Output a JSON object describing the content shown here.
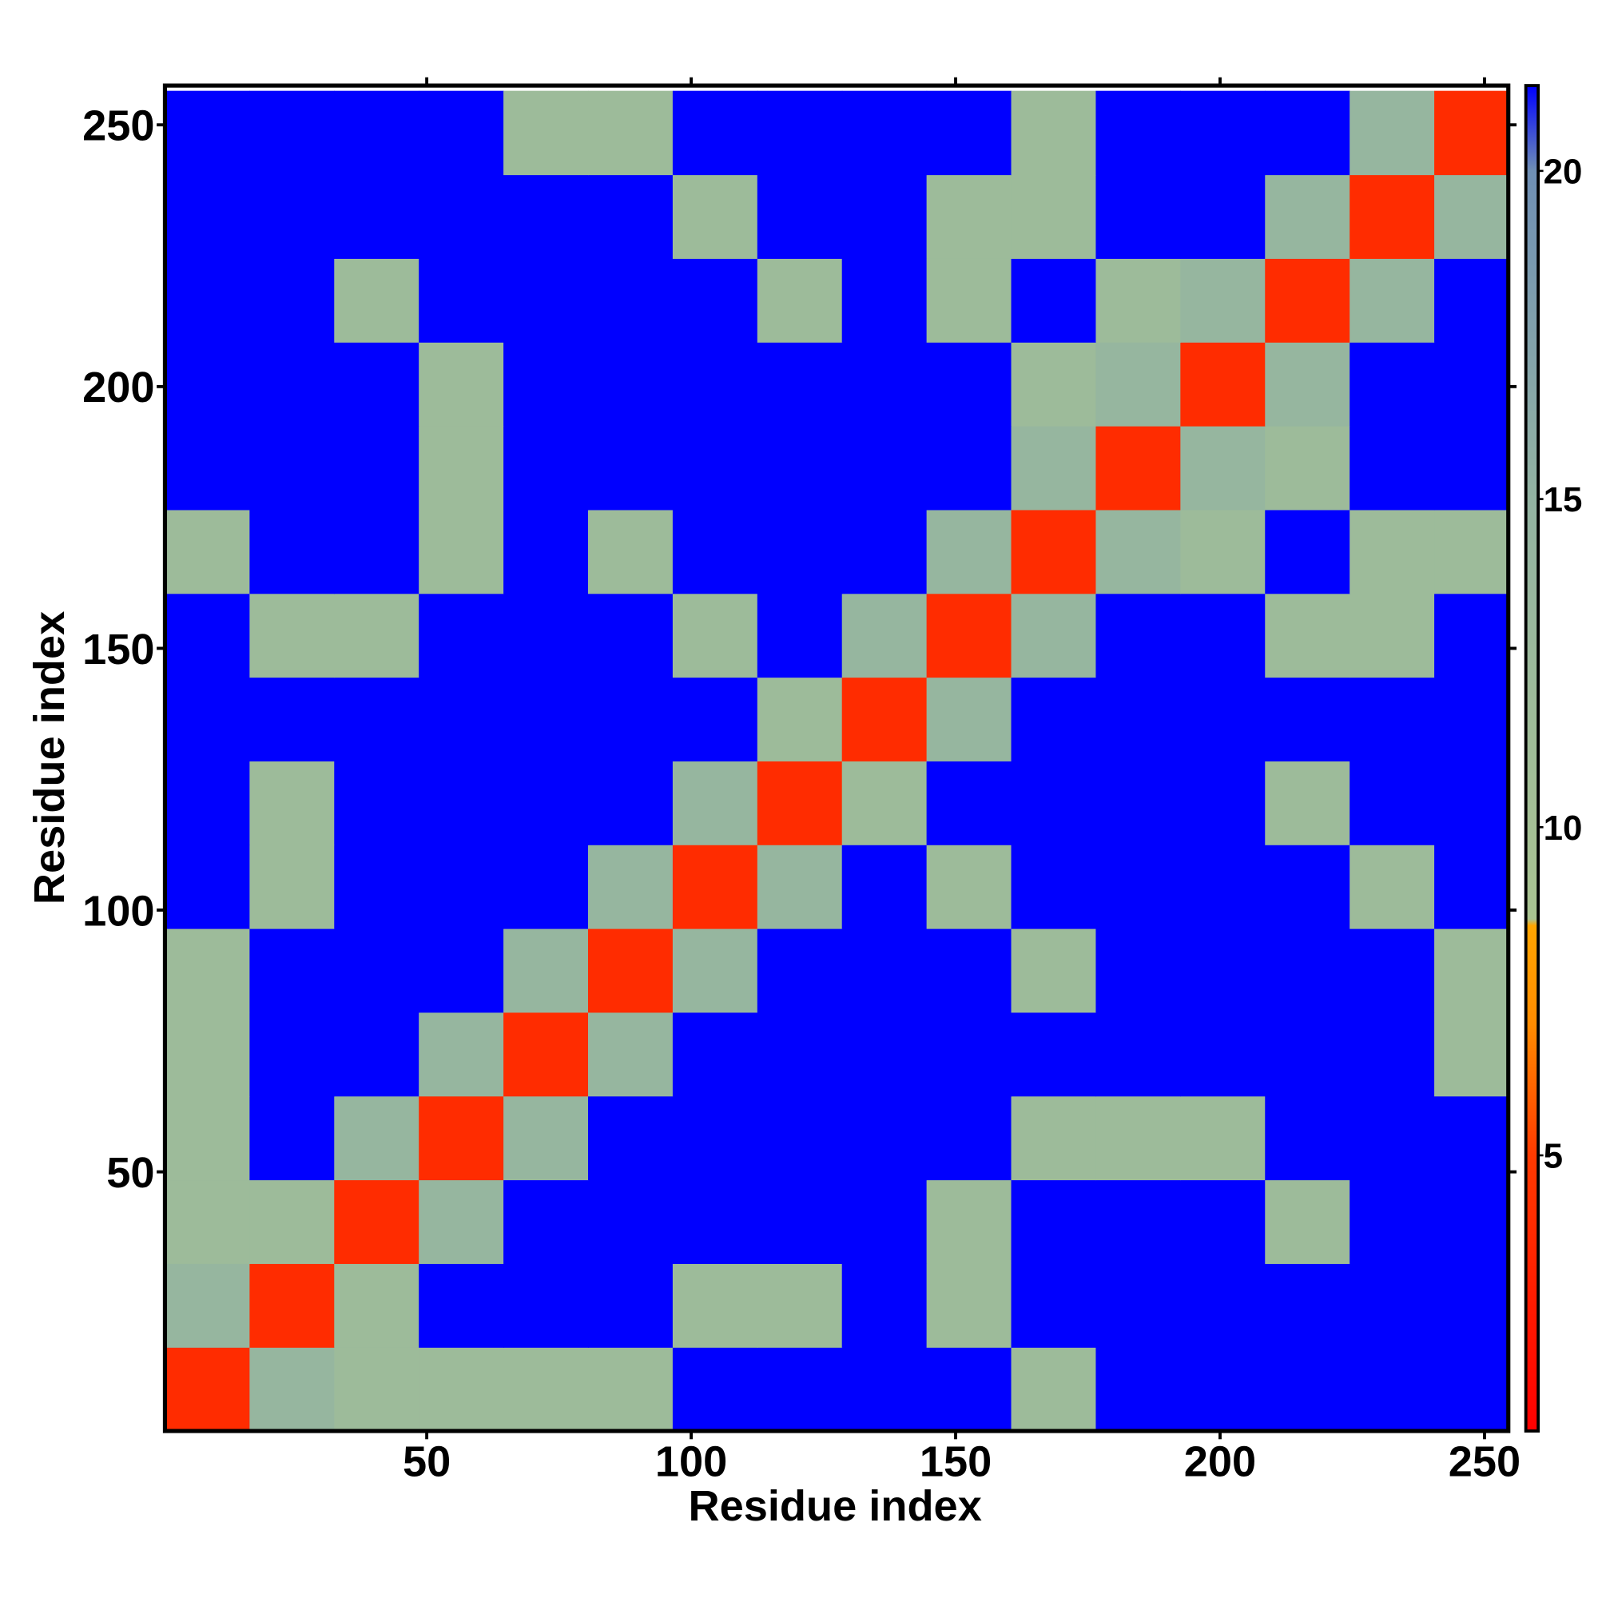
{
  "chart_data": {
    "type": "heatmap",
    "xlabel": "Residue index",
    "ylabel": "Residue index",
    "x": [
      8.5,
      24.5,
      40.5,
      56.5,
      72.5,
      88.5,
      104.5,
      120.5,
      136.5,
      152.5,
      168.5,
      184.5,
      200.5,
      216.5,
      232.5,
      248.5
    ],
    "y": [
      8.5,
      24.5,
      40.5,
      56.5,
      72.5,
      88.5,
      104.5,
      120.5,
      136.5,
      152.5,
      168.5,
      184.5,
      200.5,
      216.5,
      232.5,
      248.5
    ],
    "z": [
      [
        4,
        14,
        12,
        12,
        12,
        12,
        25,
        25,
        25,
        25,
        12,
        25,
        25,
        25,
        25,
        25
      ],
      [
        14,
        4,
        12,
        25,
        25,
        25,
        12,
        12,
        25,
        12,
        25,
        25,
        25,
        25,
        25,
        25
      ],
      [
        12,
        12,
        4,
        14,
        25,
        25,
        25,
        25,
        25,
        12,
        25,
        25,
        25,
        12,
        25,
        25
      ],
      [
        12,
        25,
        14,
        4,
        14,
        25,
        25,
        25,
        25,
        25,
        12,
        12,
        12,
        25,
        25,
        25
      ],
      [
        12,
        25,
        25,
        14,
        4,
        14,
        25,
        25,
        25,
        25,
        25,
        25,
        25,
        25,
        25,
        12
      ],
      [
        12,
        25,
        25,
        25,
        14,
        4,
        14,
        25,
        25,
        25,
        12,
        25,
        25,
        25,
        25,
        12
      ],
      [
        25,
        12,
        25,
        25,
        25,
        14,
        4,
        14,
        25,
        12,
        25,
        25,
        25,
        25,
        12,
        25
      ],
      [
        25,
        12,
        25,
        25,
        25,
        25,
        14,
        4,
        12,
        25,
        25,
        25,
        25,
        12,
        25,
        25
      ],
      [
        25,
        25,
        25,
        25,
        25,
        25,
        25,
        12,
        4,
        14,
        25,
        25,
        25,
        25,
        25,
        25
      ],
      [
        25,
        12,
        12,
        25,
        25,
        25,
        12,
        25,
        14,
        4,
        14,
        25,
        25,
        12,
        12,
        25
      ],
      [
        12,
        25,
        25,
        12,
        25,
        12,
        25,
        25,
        25,
        14,
        4,
        14,
        12,
        25,
        12,
        12
      ],
      [
        25,
        25,
        25,
        12,
        25,
        25,
        25,
        25,
        25,
        25,
        14,
        4,
        14,
        12,
        25,
        25
      ],
      [
        25,
        25,
        25,
        12,
        25,
        25,
        25,
        25,
        25,
        25,
        12,
        14,
        4,
        14,
        25,
        25
      ],
      [
        25,
        25,
        12,
        25,
        25,
        25,
        25,
        12,
        25,
        12,
        25,
        12,
        14,
        4,
        14,
        25
      ],
      [
        25,
        25,
        25,
        25,
        25,
        25,
        12,
        25,
        25,
        12,
        12,
        25,
        25,
        14,
        4,
        14
      ],
      [
        25,
        25,
        25,
        25,
        12,
        12,
        25,
        25,
        25,
        25,
        12,
        25,
        25,
        25,
        14,
        4
      ]
    ],
    "xlim": [
      0.5,
      254.5
    ],
    "ylim": [
      0.5,
      257.5
    ],
    "xticks": [
      50,
      100,
      150,
      200,
      250
    ],
    "yticks": [
      50,
      100,
      150,
      200,
      250
    ],
    "zlim": [
      0.8,
      21.3
    ],
    "colorbar_ticks": [
      5,
      10,
      15,
      20
    ],
    "colorscale": [
      [
        0.8,
        "#ff0000"
      ],
      [
        5,
        "#ff3a00"
      ],
      [
        7,
        "#ff8c00"
      ],
      [
        8.5,
        "#ffa500"
      ],
      [
        8.6,
        "#a9c391"
      ],
      [
        15,
        "#93b3a2"
      ],
      [
        20,
        "#6f8fb4"
      ],
      [
        21.3,
        "#0000ff"
      ]
    ]
  }
}
